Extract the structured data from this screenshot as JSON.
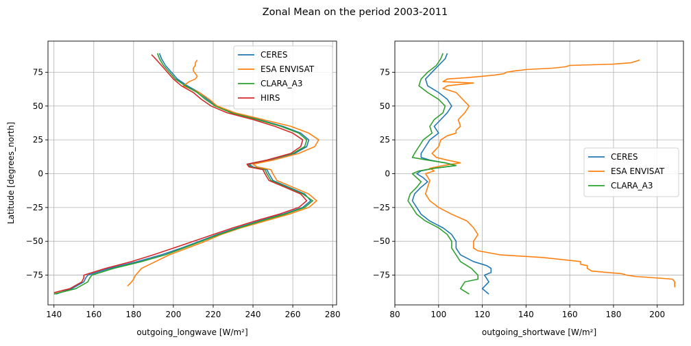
{
  "figure_title": "Zonal Mean on the period 2003-2011",
  "colors": {
    "CERES": "#1f77b4",
    "ESA ENVISAT": "#ff7f0e",
    "CLARA_A3": "#2ca02c",
    "HIRS": "#d62728"
  },
  "chart_data": [
    {
      "type": "line",
      "title": "",
      "xlabel": "outgoing_longwave",
      "xlabel_unit": "[W/m²]",
      "ylabel": "Latitude [degrees_north]",
      "xlim": [
        137,
        282
      ],
      "ylim": [
        -97,
        98
      ],
      "xticks": [
        140,
        160,
        180,
        200,
        220,
        240,
        260,
        280
      ],
      "yticks": [
        -75,
        -50,
        -25,
        0,
        25,
        50,
        75
      ],
      "grid": true,
      "legend": "upper right",
      "series": [
        {
          "name": "CERES",
          "lat": [
            89,
            85,
            80,
            75,
            70,
            65,
            60,
            55,
            50,
            45,
            40,
            35,
            30,
            25,
            20,
            15,
            10,
            7,
            5,
            3,
            0,
            -5,
            -10,
            -15,
            -20,
            -25,
            -30,
            -35,
            -40,
            -45,
            -50,
            -55,
            -60,
            -65,
            -70,
            -75,
            -77,
            -80,
            -85,
            -89
          ],
          "x": [
            193,
            194,
            196,
            199,
            202,
            207,
            213,
            217,
            222,
            230,
            243,
            255,
            264,
            268,
            267,
            261,
            248,
            238,
            240,
            247,
            248,
            250,
            258,
            266,
            269,
            265,
            255,
            243,
            232,
            222,
            213,
            204,
            194,
            182,
            168,
            157,
            156,
            155,
            149,
            141
          ]
        },
        {
          "name": "ESA ENVISAT",
          "lat": [
            84,
            82,
            80,
            78,
            76,
            74,
            72,
            70,
            68,
            65,
            60,
            55,
            50,
            45,
            40,
            35,
            30,
            25,
            20,
            15,
            10,
            7,
            5,
            3,
            0,
            -5,
            -10,
            -15,
            -20,
            -25,
            -30,
            -35,
            -40,
            -45,
            -50,
            -55,
            -60,
            -65,
            -70,
            -75,
            -78,
            -80,
            -83
          ],
          "x": [
            212,
            211,
            211,
            210,
            210,
            211,
            212,
            211,
            208,
            205,
            213,
            218,
            222,
            231,
            245,
            259,
            268,
            273,
            271,
            263,
            250,
            240,
            242,
            249,
            250,
            252,
            260,
            268,
            272,
            268,
            258,
            246,
            234,
            224,
            216,
            207,
            198,
            191,
            184,
            181,
            180,
            179,
            177
          ]
        },
        {
          "name": "CLARA_A3",
          "lat": [
            89,
            85,
            80,
            75,
            70,
            65,
            60,
            55,
            50,
            45,
            40,
            35,
            30,
            25,
            20,
            15,
            10,
            7,
            5,
            3,
            0,
            -5,
            -10,
            -15,
            -20,
            -25,
            -30,
            -35,
            -40,
            -45,
            -50,
            -55,
            -60,
            -65,
            -70,
            -75,
            -77,
            -80,
            -85,
            -89
          ],
          "x": [
            192,
            193,
            195,
            198,
            201,
            206,
            212,
            216,
            221,
            229,
            242,
            254,
            263,
            267,
            266,
            260,
            247,
            237,
            239,
            246,
            247,
            249,
            257,
            265,
            270,
            266,
            256,
            244,
            233,
            223,
            214,
            205,
            196,
            184,
            170,
            159,
            158,
            157,
            151,
            140
          ]
        },
        {
          "name": "HIRS",
          "lat": [
            88,
            85,
            80,
            75,
            70,
            65,
            60,
            55,
            50,
            45,
            40,
            35,
            30,
            25,
            20,
            15,
            10,
            7,
            5,
            3,
            0,
            -5,
            -10,
            -15,
            -20,
            -25,
            -30,
            -35,
            -40,
            -45,
            -50,
            -55,
            -60,
            -65,
            -70,
            -75,
            -77,
            -80,
            -85,
            -88
          ],
          "x": [
            189,
            191,
            194,
            197,
            200,
            204,
            210,
            214,
            219,
            227,
            240,
            251,
            260,
            265,
            264,
            259,
            247,
            237,
            238,
            245,
            246,
            248,
            256,
            264,
            267,
            263,
            253,
            241,
            230,
            220,
            210,
            200,
            190,
            179,
            166,
            155,
            155,
            154,
            148,
            140
          ]
        }
      ]
    },
    {
      "type": "line",
      "title": "",
      "xlabel": "outgoing_shortwave",
      "xlabel_unit": "[W/m²]",
      "ylabel": "",
      "xlim": [
        80,
        212
      ],
      "ylim": [
        -97,
        98
      ],
      "xticks": [
        80,
        100,
        120,
        140,
        160,
        180,
        200
      ],
      "yticks": [
        -75,
        -50,
        -25,
        0,
        25,
        50,
        75
      ],
      "grid": true,
      "legend": "center right",
      "series": [
        {
          "name": "CERES",
          "lat": [
            89,
            85,
            80,
            75,
            70,
            65,
            60,
            55,
            50,
            45,
            40,
            35,
            30,
            25,
            20,
            15,
            12,
            10,
            8,
            6,
            4,
            2,
            0,
            -3,
            -6,
            -10,
            -15,
            -20,
            -25,
            -30,
            -35,
            -40,
            -45,
            -50,
            -55,
            -60,
            -65,
            -68,
            -70,
            -73,
            -75,
            -80,
            -85,
            -89
          ],
          "x": [
            104,
            103,
            100,
            97,
            94,
            95,
            100,
            104,
            106,
            104,
            101,
            98,
            100,
            96,
            94,
            92,
            92,
            96,
            103,
            108,
            98,
            92,
            90,
            93,
            95,
            92,
            89,
            88,
            90,
            92,
            96,
            102,
            106,
            108,
            108,
            110,
            116,
            122,
            124,
            124,
            121,
            123,
            120,
            123
          ]
        },
        {
          "name": "ESA ENVISAT",
          "lat": [
            84,
            82,
            81,
            80,
            79,
            78,
            77,
            76,
            75,
            74,
            73,
            72,
            71,
            70,
            68,
            67,
            65,
            63,
            60,
            55,
            50,
            45,
            40,
            35,
            32,
            30,
            28,
            26,
            25,
            20,
            15,
            12,
            10,
            8,
            6,
            4,
            2,
            0,
            -5,
            -10,
            -15,
            -20,
            -25,
            -30,
            -35,
            -40,
            -45,
            -50,
            -55,
            -57,
            -60,
            -62,
            -65,
            -67,
            -68,
            -70,
            -72,
            -74,
            -75,
            -76,
            -77,
            -78,
            -80,
            -82,
            -84
          ],
          "x": [
            192,
            188,
            180,
            160,
            158,
            152,
            140,
            135,
            131,
            130,
            126,
            120,
            113,
            104,
            102,
            116,
            104,
            102,
            108,
            111,
            114,
            112,
            109,
            110,
            108,
            108,
            104,
            102,
            101,
            100,
            97,
            99,
            104,
            110,
            102,
            96,
            98,
            94,
            96,
            95,
            94,
            96,
            100,
            106,
            113,
            116,
            118,
            116,
            116,
            118,
            128,
            148,
            165,
            165,
            168,
            168,
            170,
            184,
            186,
            190,
            199,
            207,
            208,
            208,
            208
          ]
        },
        {
          "name": "CLARA_A3",
          "lat": [
            89,
            85,
            80,
            75,
            70,
            65,
            60,
            55,
            50,
            45,
            40,
            35,
            30,
            25,
            20,
            15,
            12,
            10,
            8,
            6,
            4,
            2,
            0,
            -3,
            -6,
            -10,
            -15,
            -20,
            -25,
            -30,
            -35,
            -40,
            -45,
            -50,
            -55,
            -60,
            -65,
            -70,
            -75,
            -78,
            -80,
            -85,
            -89
          ],
          "x": [
            102,
            101,
            99,
            95,
            92,
            91,
            95,
            100,
            103,
            102,
            98,
            96,
            97,
            93,
            91,
            89,
            88,
            95,
            103,
            108,
            98,
            91,
            88,
            90,
            92,
            90,
            87,
            86,
            88,
            90,
            94,
            100,
            104,
            106,
            106,
            108,
            110,
            115,
            118,
            118,
            112,
            110,
            114
          ]
        }
      ]
    }
  ]
}
